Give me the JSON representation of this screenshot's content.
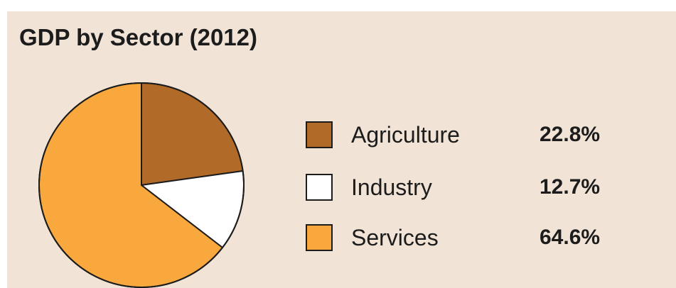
{
  "chart_data": {
    "type": "pie",
    "title": "GDP by Sector (2012)",
    "slices": [
      {
        "label": "Agriculture",
        "value": 22.8,
        "display": "22.8%",
        "color": "#b26a28"
      },
      {
        "label": "Industry",
        "value": 12.7,
        "display": "12.7%",
        "color": "#ffffff"
      },
      {
        "label": "Services",
        "value": 64.6,
        "display": "64.6%",
        "color": "#f9a83e"
      }
    ],
    "legend_position": "right"
  },
  "colors": {
    "background": "#f1e4d6",
    "outline": "#1c1c1c"
  }
}
